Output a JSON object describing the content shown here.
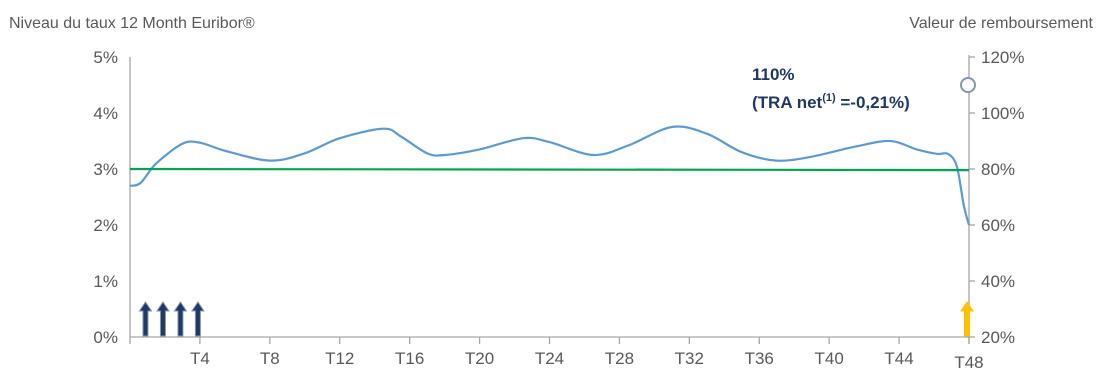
{
  "chart_data": {
    "type": "line",
    "left_axis_title": "Niveau du taux 12 Month Euribor®",
    "right_axis_title": "Valeur de remboursement",
    "y_left": {
      "ticks": [
        "0%",
        "1%",
        "2%",
        "3%",
        "4%",
        "5%"
      ],
      "ylim": [
        0,
        5
      ]
    },
    "y_right": {
      "ticks": [
        "20%",
        "40%",
        "60%",
        "80%",
        "100%",
        "120%"
      ],
      "ylim": [
        20,
        120
      ]
    },
    "x_ticks": [
      "T4",
      "T8",
      "T12",
      "T16",
      "T20",
      "T24",
      "T28",
      "T32",
      "T36",
      "T40",
      "T44",
      "T48"
    ],
    "xlim": [
      0,
      48
    ],
    "grid": false,
    "series": [
      {
        "color": "#5b9bd5",
        "axis": "left",
        "x": [
          0,
          0.6,
          1.5,
          3,
          4,
          5.5,
          8,
          10,
          12,
          14.5,
          15.5,
          17,
          18,
          20,
          22.5,
          24,
          26.5,
          28.5,
          31,
          33,
          35,
          37,
          39,
          41.5,
          43.5,
          45,
          46.2,
          46.8,
          47.3,
          47.7,
          48
        ],
        "y": [
          2.7,
          2.75,
          3.1,
          3.45,
          3.47,
          3.32,
          3.15,
          3.28,
          3.55,
          3.72,
          3.58,
          3.28,
          3.25,
          3.35,
          3.55,
          3.48,
          3.25,
          3.42,
          3.75,
          3.63,
          3.3,
          3.15,
          3.22,
          3.4,
          3.5,
          3.35,
          3.27,
          3.27,
          3.05,
          2.35,
          2.0
        ]
      },
      {
        "color": "#00a650",
        "axis": "left",
        "x": [
          0,
          48
        ],
        "y": [
          3.0,
          2.98
        ]
      }
    ],
    "annotation": {
      "value": "110%",
      "prefix": "(TRA net",
      "superscript": "(1)",
      "suffix": " =-0,21%)",
      "marker_right_value": 110,
      "marker_x": 48
    },
    "arrows": {
      "gray_positions": [
        1,
        2,
        3,
        4
      ],
      "gray_color": "#1f3864",
      "gold_positions": [
        48
      ],
      "gold_color": "#ffc000"
    }
  }
}
